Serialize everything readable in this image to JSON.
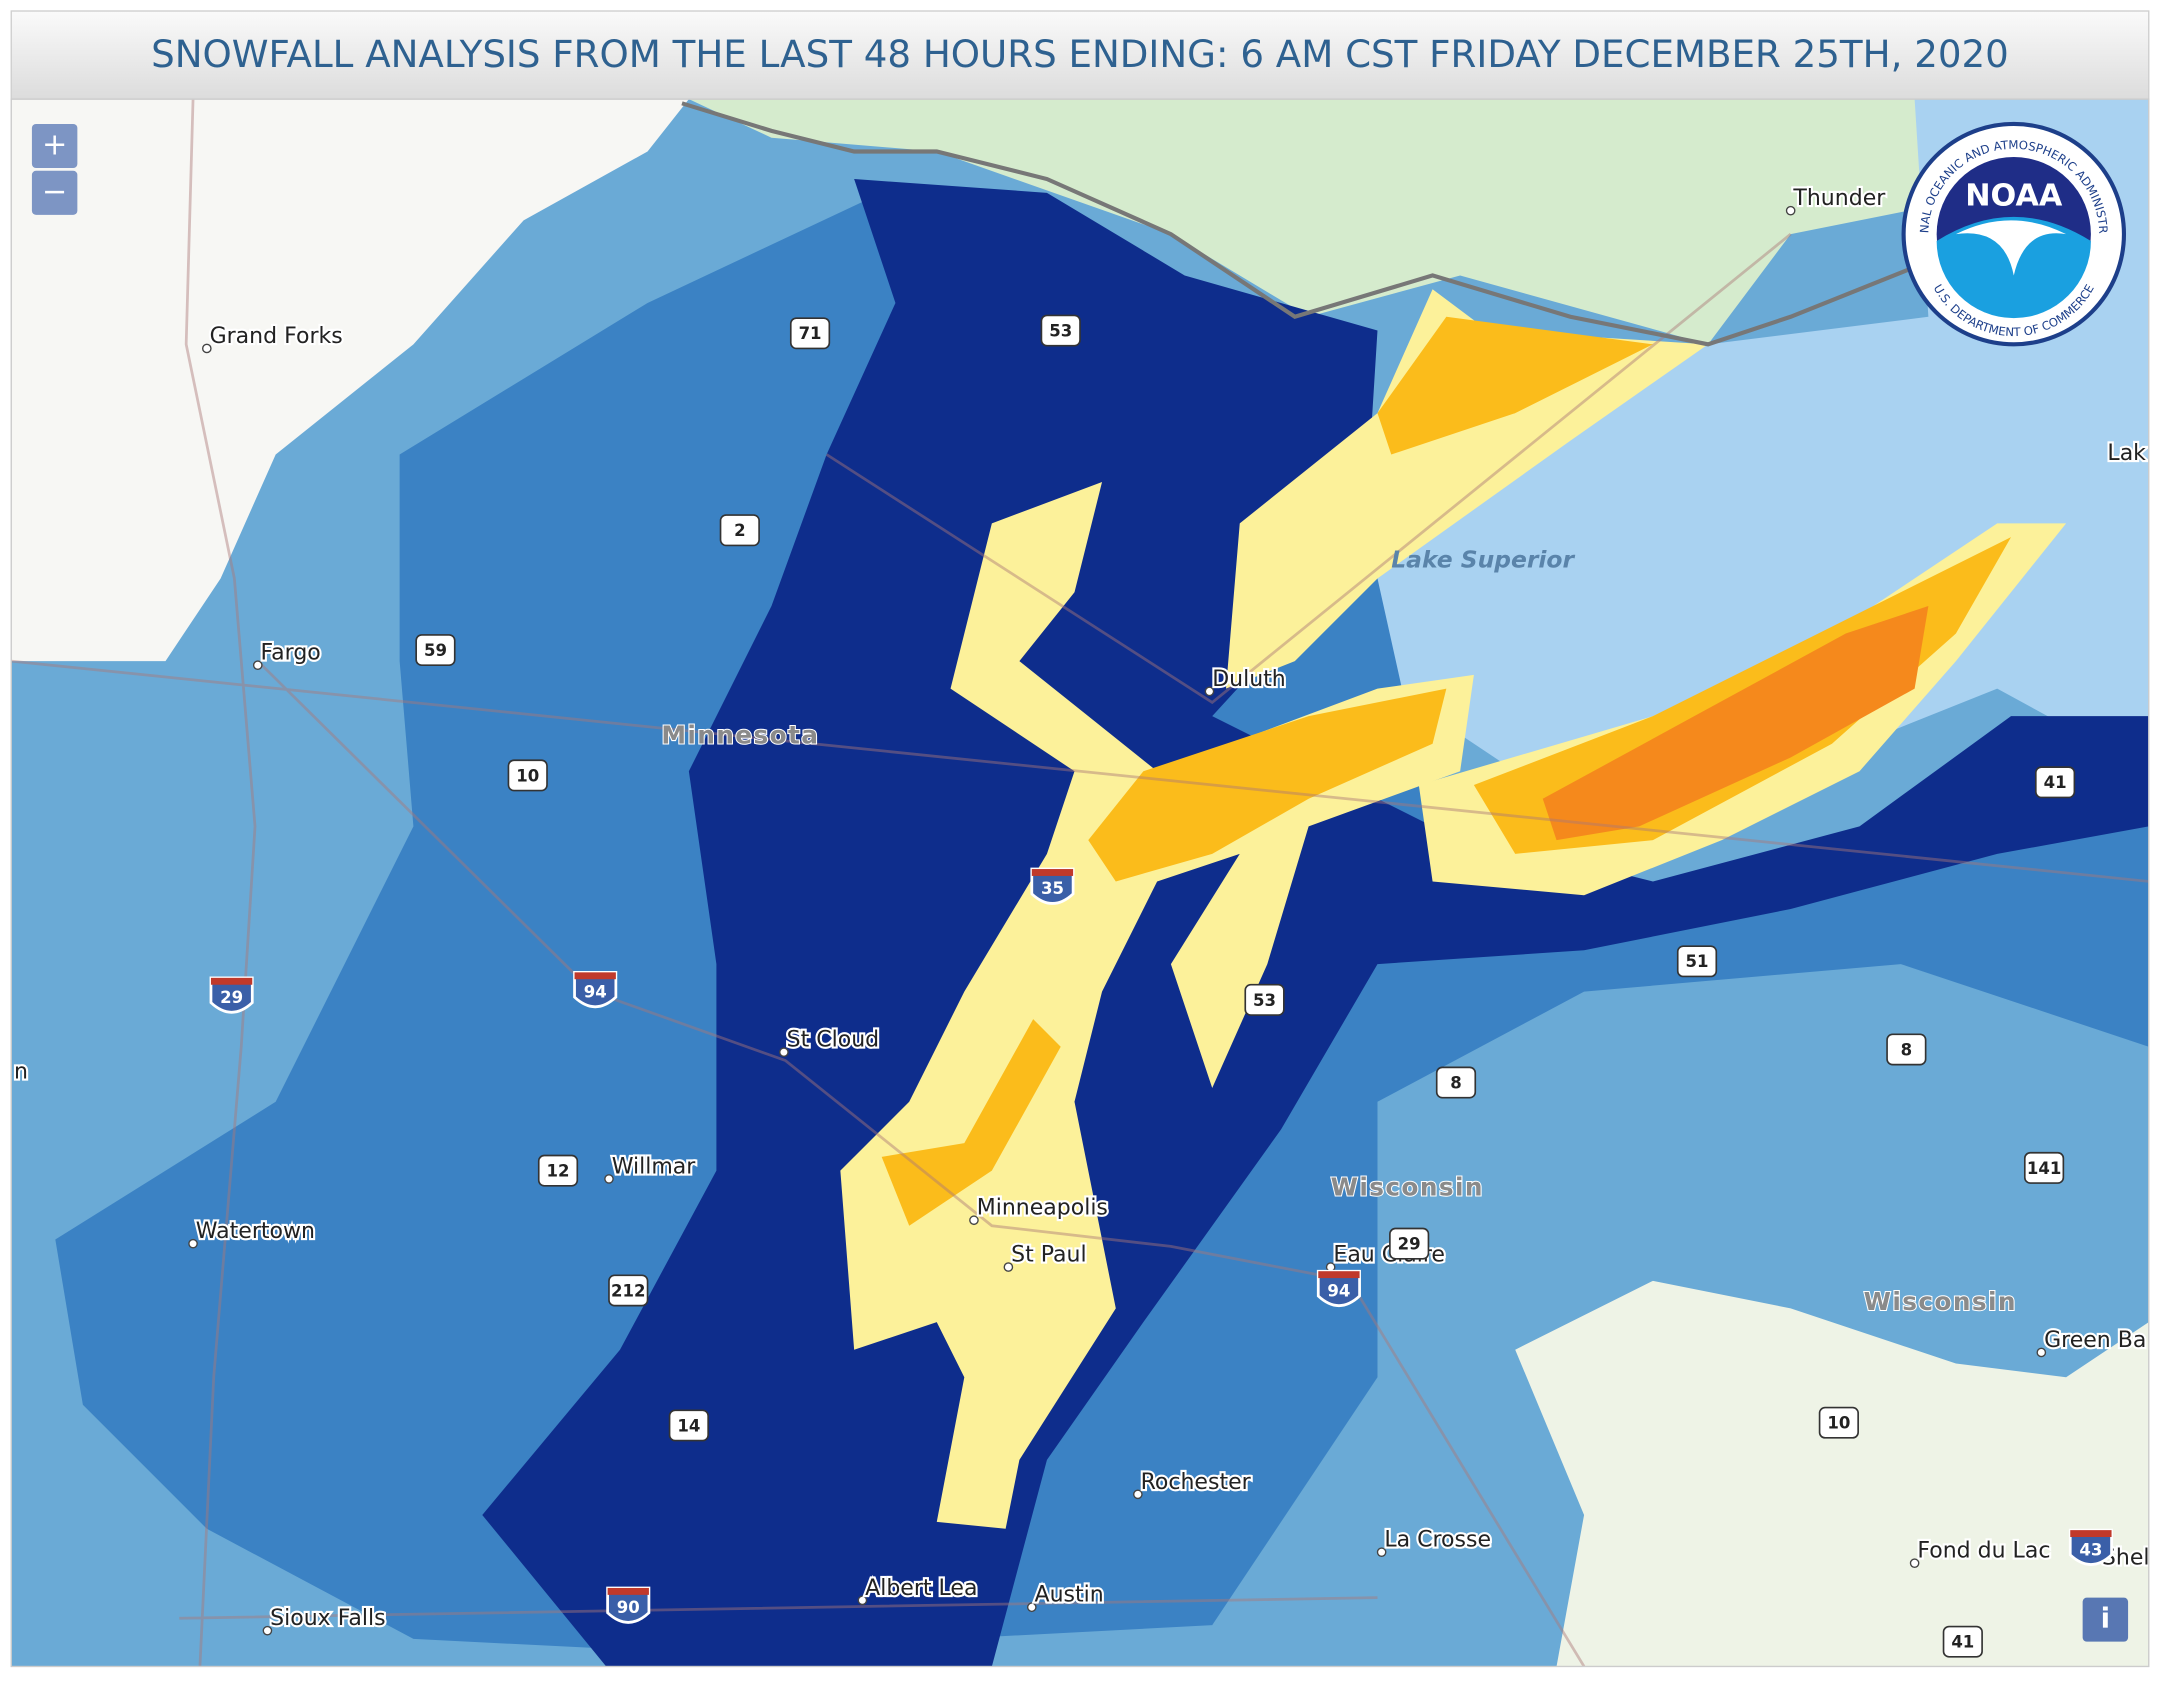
{
  "header": {
    "title": "SNOWFALL ANALYSIS FROM THE LAST 48 HOURS ENDING: 6 AM CST FRIDAY DECEMBER 25TH, 2020"
  },
  "map": {
    "controls": {
      "zoom_in": "+",
      "zoom_out": "−",
      "info": "i"
    },
    "logo": {
      "text": "NOAA",
      "ring_top": "NATIONAL OCEANIC AND ATMOSPHERIC ADMINISTRATION",
      "ring_bottom": "U.S. DEPARTMENT OF COMMERCE"
    },
    "places": [
      "Grand Forks",
      "Fargo",
      "Thunder",
      "Duluth",
      "St Cloud",
      "Willmar",
      "Watertown",
      "Minneapolis",
      "St Paul",
      "Eau Claire",
      "Rochester",
      "La Crosse",
      "Albert Lea",
      "Austin",
      "Sioux Falls",
      "Green Ba",
      "Fond du Lac",
      "Shel",
      "Lak",
      "n"
    ],
    "regions": [
      "Minnesota",
      "Wisconsin",
      "Wisconsin"
    ],
    "water": [
      "Lake Superior"
    ],
    "highways": [
      "71",
      "53",
      "2",
      "59",
      "10",
      "35",
      "29",
      "94",
      "53",
      "8",
      "51",
      "41",
      "8",
      "141",
      "12",
      "212",
      "29",
      "94",
      "14",
      "90",
      "10",
      "41",
      "43"
    ]
  }
}
